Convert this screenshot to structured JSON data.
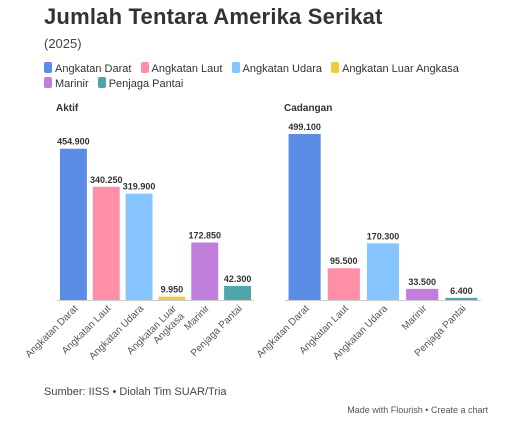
{
  "header": {
    "title": "Jumlah Tentara Amerika Serikat",
    "subtitle": "(2025)"
  },
  "legend": [
    {
      "label": "Angkatan Darat",
      "color": "#5b8ce6"
    },
    {
      "label": "Angkatan Laut",
      "color": "#ff8fa6"
    },
    {
      "label": "Angkatan Udara",
      "color": "#86c5ff"
    },
    {
      "label": "Angkatan Luar Angkasa",
      "color": "#f5c842"
    },
    {
      "label": "Marinir",
      "color": "#c07fdc"
    },
    {
      "label": "Penjaga Pantai",
      "color": "#4ea6a8"
    }
  ],
  "chart_data": [
    {
      "type": "bar",
      "title": "Aktif",
      "categories": [
        "Angkatan Darat",
        "Angkatan Laut",
        "Angkatan Udara",
        "Angkatan Luar Angkasa",
        "Marinir",
        "Penjaga Pantai"
      ],
      "values": [
        454900,
        340250,
        319900,
        9950,
        172850,
        42300
      ],
      "data_labels": [
        "454.900",
        "340.250",
        "319.900",
        "9.950",
        "172.850",
        "42.300"
      ],
      "tick_labels": [
        [
          "Angkatan Darat"
        ],
        [
          "Angkatan Laut"
        ],
        [
          "Angkatan Udara"
        ],
        [
          "Angkatan Luar",
          "Angkasa"
        ],
        [
          "Marinir"
        ],
        [
          "Penjaga Pantai"
        ]
      ],
      "ylim": [
        0,
        499100
      ]
    },
    {
      "type": "bar",
      "title": "Cadangan",
      "categories": [
        "Angkatan Darat",
        "Angkatan Laut",
        "Angkatan Udara",
        "Marinir",
        "Penjaga Pantai"
      ],
      "values": [
        499100,
        95500,
        170300,
        33500,
        6400
      ],
      "data_labels": [
        "499.100",
        "95.500",
        "170.300",
        "33.500",
        "6.400"
      ],
      "tick_labels": [
        [
          "Angkatan Darat"
        ],
        [
          "Angkatan Laut"
        ],
        [
          "Angkatan Udara"
        ],
        [
          "Marinir"
        ],
        [
          "Penjaga Pantai"
        ]
      ],
      "ylim": [
        0,
        499100
      ]
    }
  ],
  "footer": {
    "source": "Sumber: IISS • Diolah Tim SUAR/Tria",
    "credit": "Made with Flourish • Create a chart"
  }
}
